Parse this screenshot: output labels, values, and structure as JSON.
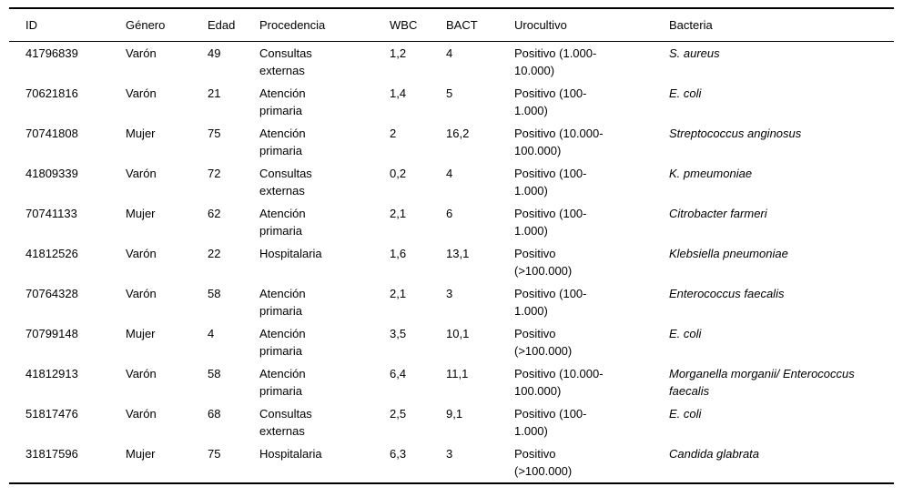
{
  "table": {
    "columns": [
      {
        "key": "id",
        "label": "ID"
      },
      {
        "key": "genero",
        "label": "Género"
      },
      {
        "key": "edad",
        "label": "Edad"
      },
      {
        "key": "procedencia",
        "label": "Procedencia"
      },
      {
        "key": "wbc",
        "label": "WBC"
      },
      {
        "key": "bact",
        "label": "BACT"
      },
      {
        "key": "urocultivo",
        "label": "Urocultivo"
      },
      {
        "key": "bacteria",
        "label": "Bacteria"
      }
    ],
    "rows": [
      [
        "41796839",
        "Varón",
        "49",
        "Consultas externas",
        "1,2",
        "4",
        "Positivo (1.000-10.000)",
        "S. aureus"
      ],
      [
        "70621816",
        "Varón",
        "21",
        "Atención primaria",
        "1,4",
        "5",
        "Positivo (100-1.000)",
        "E. coli"
      ],
      [
        "70741808",
        "Mujer",
        "75",
        "Atención primaria",
        "2",
        "16,2",
        "Positivo (10.000-100.000)",
        "Streptococcus anginosus"
      ],
      [
        "41809339",
        "Varón",
        "72",
        "Consultas externas",
        "0,2",
        "4",
        "Positivo (100-1.000)",
        "K. pmeumoniae"
      ],
      [
        "70741133",
        "Mujer",
        "62",
        "Atención primaria",
        "2,1",
        "6",
        "Positivo (100-1.000)",
        "Citrobacter farmeri"
      ],
      [
        "41812526",
        "Varón",
        "22",
        "Hospitalaria",
        "1,6",
        "13,1",
        "Positivo (>100.000)",
        "Klebsiella pneumoniae"
      ],
      [
        "70764328",
        "Varón",
        "58",
        "Atención primaria",
        "2,1",
        "3",
        "Positivo (100-1.000)",
        "Enterococcus faecalis"
      ],
      [
        "70799148",
        "Mujer",
        "4",
        "Atención primaria",
        "3,5",
        "10,1",
        "Positivo (>100.000)",
        "E. coli"
      ],
      [
        "41812913",
        "Varón",
        "58",
        "Atención primaria",
        "6,4",
        "11,1",
        "Positivo (10.000-100.000)",
        "Morganella morganii/ Enterococcus faecalis"
      ],
      [
        "51817476",
        "Varón",
        "68",
        "Consultas externas",
        "2,5",
        "9,1",
        "Positivo (100-1.000)",
        "E. coli"
      ],
      [
        "31817596",
        "Mujer",
        "75",
        "Hospitalaria",
        "6,3",
        "3",
        "Positivo (>100.000)",
        "Candida glabrata"
      ]
    ]
  }
}
